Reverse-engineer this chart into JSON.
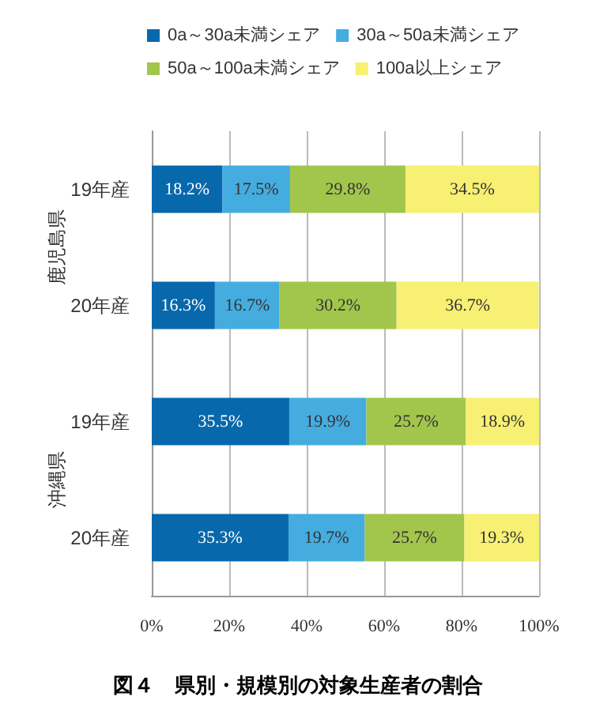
{
  "chart_data": {
    "type": "bar",
    "orientation": "horizontal",
    "stacked": true,
    "title": "図４　県別・規模別の対象生産者の割合",
    "categories": [
      "19年産",
      "20年産",
      "19年産",
      "20年産"
    ],
    "annotations": [
      "鹿児島県",
      "沖縄県"
    ],
    "series": [
      {
        "name": "0a～30a未満シェア",
        "color": "#0868ac",
        "values": [
          18.2,
          16.3,
          35.5,
          35.3
        ],
        "value_labels": [
          "18.2%",
          "16.3%",
          "35.5%",
          "35.3%"
        ]
      },
      {
        "name": "30a～50a未満シェア",
        "color": "#45ace0",
        "values": [
          17.5,
          16.7,
          19.9,
          19.7
        ],
        "value_labels": [
          "17.5%",
          "16.7%",
          "19.9%",
          "19.7%"
        ]
      },
      {
        "name": "50a～100a未満シェア",
        "color": "#a2c64c",
        "values": [
          29.8,
          30.2,
          25.7,
          25.7
        ],
        "value_labels": [
          "29.8%",
          "30.2%",
          "25.7%",
          "25.7%"
        ]
      },
      {
        "name": "100a以上シェア",
        "color": "#f7f072",
        "values": [
          34.5,
          36.7,
          18.9,
          19.3
        ],
        "value_labels": [
          "34.5%",
          "36.7%",
          "18.9%",
          "19.3%"
        ]
      }
    ],
    "xlim": [
      0,
      100
    ],
    "xticks": [
      {
        "value": 0,
        "label": "0%"
      },
      {
        "value": 20,
        "label": "20%"
      },
      {
        "value": 40,
        "label": "40%"
      },
      {
        "value": 60,
        "label": "60%"
      },
      {
        "value": 80,
        "label": "80%"
      },
      {
        "value": 100,
        "label": "100%"
      }
    ],
    "grid": "x",
    "legend": "top"
  }
}
